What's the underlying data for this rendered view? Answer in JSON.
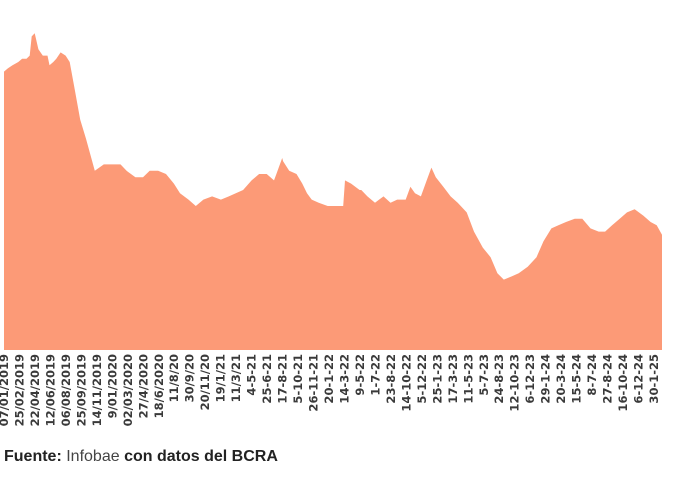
{
  "chart_data": {
    "type": "area",
    "color": "#fc9a77",
    "tick_labels": [
      "07/01/2019",
      "25/02/2019",
      "22/04/2019",
      "12/06/2019",
      "06/08/2019",
      "25/09/2019",
      "14/11/2019",
      "9/01/2020",
      "02/03/2020",
      "27/4/2020",
      "18/6/2020",
      "11/8/20",
      "30/9/20",
      "20/11/20",
      "19/1/21",
      "11/3/21",
      "4-5-21",
      "25-6-21",
      "17-8-21",
      "5-10-21",
      "26-11-21",
      "20-1-22",
      "14-3-22",
      "9-5-22",
      "1-7-22",
      "23-8-22",
      "14-10-22",
      "5-12-22",
      "25-1-23",
      "17-3-23",
      "11-5-23",
      "5-7-23",
      "24-8-23",
      "12-10-23",
      "6-12-23",
      "29-1-24",
      "20-3-24",
      "15-5-24",
      "8-7-24",
      "27-8-24",
      "16-10-24",
      "6-12-24",
      "30-1-25"
    ],
    "x": [
      "2019-01-07",
      "2019-01-20",
      "2019-02-05",
      "2019-02-25",
      "2019-03-10",
      "2019-03-25",
      "2019-04-05",
      "2019-04-12",
      "2019-04-22",
      "2019-05-05",
      "2019-05-20",
      "2019-06-05",
      "2019-06-12",
      "2019-06-25",
      "2019-07-05",
      "2019-07-20",
      "2019-08-06",
      "2019-08-20",
      "2019-09-05",
      "2019-09-25",
      "2019-10-15",
      "2019-11-14",
      "2019-12-15",
      "2020-01-09",
      "2020-02-10",
      "2020-03-02",
      "2020-04-01",
      "2020-04-27",
      "2020-05-20",
      "2020-06-18",
      "2020-07-15",
      "2020-08-11",
      "2020-09-01",
      "2020-09-30",
      "2020-10-25",
      "2020-11-20",
      "2020-12-20",
      "2021-01-19",
      "2021-02-15",
      "2021-03-11",
      "2021-04-05",
      "2021-05-04",
      "2021-05-30",
      "2021-06-25",
      "2021-07-20",
      "2021-07-28",
      "2021-08-17",
      "2021-08-20",
      "2021-09-10",
      "2021-10-05",
      "2021-10-25",
      "2021-11-10",
      "2021-11-26",
      "2021-12-20",
      "2022-01-20",
      "2022-02-15",
      "2022-03-14",
      "2022-03-20",
      "2022-04-10",
      "2022-05-09",
      "2022-05-15",
      "2022-06-05",
      "2022-07-01",
      "2022-07-15",
      "2022-07-30",
      "2022-08-23",
      "2022-09-15",
      "2022-10-14",
      "2022-10-30",
      "2022-11-15",
      "2022-12-05",
      "2022-12-25",
      "2023-01-10",
      "2023-01-25",
      "2023-02-20",
      "2023-03-17",
      "2023-04-10",
      "2023-05-11",
      "2023-06-05",
      "2023-07-05",
      "2023-08-01",
      "2023-08-24",
      "2023-09-15",
      "2023-10-12",
      "2023-11-05",
      "2023-12-06",
      "2024-01-05",
      "2024-01-29",
      "2024-02-25",
      "2024-03-20",
      "2024-04-15",
      "2024-05-15",
      "2024-06-10",
      "2024-07-08",
      "2024-08-05",
      "2024-08-27",
      "2024-09-20",
      "2024-10-16",
      "2024-11-10",
      "2024-12-06",
      "2025-01-05",
      "2025-01-30",
      "2025-02-20",
      "2025-03-10"
    ],
    "y": [
      87,
      88,
      89,
      90,
      91,
      91,
      92,
      98,
      99,
      94,
      92,
      92,
      89,
      90,
      91,
      93,
      92,
      90,
      82,
      72,
      66,
      56,
      58,
      58,
      58,
      56,
      54,
      54,
      56,
      56,
      55,
      52,
      49,
      47,
      45,
      47,
      48,
      47,
      48,
      49,
      50,
      53,
      55,
      55,
      53,
      55,
      60,
      59,
      56,
      55,
      52,
      49,
      47,
      46,
      45,
      45,
      45,
      53,
      52,
      50,
      50,
      48,
      46,
      47,
      48,
      46,
      47,
      47,
      51,
      49,
      48,
      53,
      57,
      54,
      51,
      48,
      46,
      43,
      37,
      32,
      29,
      24,
      22,
      23,
      24,
      26,
      29,
      34,
      38,
      39,
      40,
      41,
      41,
      38,
      37,
      37,
      39,
      41,
      43,
      44,
      42,
      40,
      39,
      36
    ],
    "ylim": [
      0,
      100
    ]
  },
  "footer": {
    "label": "Fuente:",
    "source": "Infobae",
    "rest": "con datos del BCRA"
  }
}
